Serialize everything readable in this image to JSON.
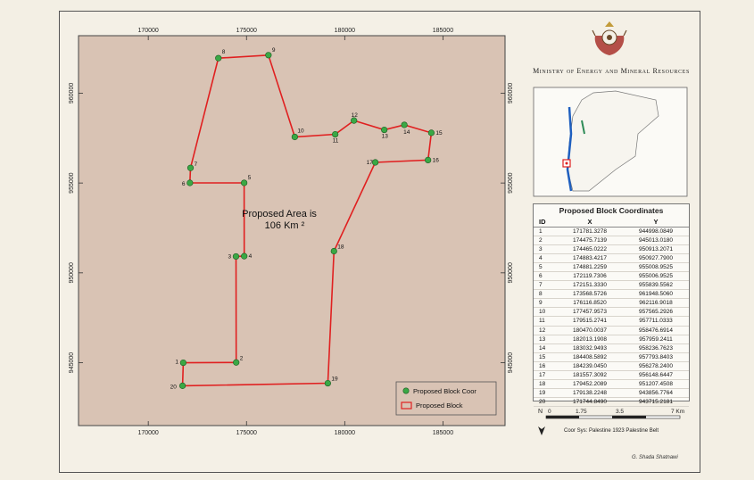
{
  "ministry_title": "Ministry of Energy and Mineral Resources",
  "map": {
    "x_ticks": [
      "170000",
      "175000",
      "180000",
      "185000"
    ],
    "y_ticks": [
      "960000",
      "955000",
      "950000",
      "945000"
    ],
    "area_label_line1": "Proposed Area is",
    "area_label_line2": "106 Km ²",
    "colors": {
      "block_line": "#e02020",
      "point": "#3aa845",
      "map_bg": "#d9c3b4"
    },
    "block_points": [
      {
        "id": "1",
        "x": 171781.3278,
        "y": 944998.0849
      },
      {
        "id": "2",
        "x": 174475.7139,
        "y": 945013.018
      },
      {
        "id": "3",
        "x": 174465.0222,
        "y": 950913.2071
      },
      {
        "id": "4",
        "x": 174883.4217,
        "y": 950927.79
      },
      {
        "id": "5",
        "x": 174881.2259,
        "y": 955008.9525
      },
      {
        "id": "6",
        "x": 172119.7306,
        "y": 955006.9525
      },
      {
        "id": "7",
        "x": 172151.333,
        "y": 955839.5562
      },
      {
        "id": "8",
        "x": 173568.5726,
        "y": 961948.506
      },
      {
        "id": "9",
        "x": 176116.852,
        "y": 962116.9018
      },
      {
        "id": "10",
        "x": 177457.9573,
        "y": 957565.2926
      },
      {
        "id": "11",
        "x": 179515.2741,
        "y": 957711.0333
      },
      {
        "id": "12",
        "x": 180470.0037,
        "y": 958476.6914
      },
      {
        "id": "13",
        "x": 182013.1908,
        "y": 957959.2411
      },
      {
        "id": "14",
        "x": 183032.9493,
        "y": 958236.7623
      },
      {
        "id": "15",
        "x": 184408.5892,
        "y": 957793.8403
      },
      {
        "id": "16",
        "x": 184239.045,
        "y": 956278.24
      },
      {
        "id": "17",
        "x": 181557.3092,
        "y": 956148.6447
      },
      {
        "id": "18",
        "x": 179452.2089,
        "y": 951207.4508
      },
      {
        "id": "19",
        "x": 179138.2248,
        "y": 943856.7764
      },
      {
        "id": "20",
        "x": 171744.849,
        "y": 943715.2181
      }
    ]
  },
  "legend": {
    "points_label": "Proposed Block Coor",
    "block_label": "Proposed Block"
  },
  "table": {
    "title": "Proposed Block Coordinates",
    "headers": [
      "ID",
      "X",
      "Y"
    ],
    "rows": [
      [
        "1",
        "171781.3278",
        "944998.0849"
      ],
      [
        "2",
        "174475.7139",
        "945013.0180"
      ],
      [
        "3",
        "174465.0222",
        "950913.2071"
      ],
      [
        "4",
        "174883.4217",
        "950927.7900"
      ],
      [
        "5",
        "174881.2259",
        "955008.9525"
      ],
      [
        "6",
        "172119.7306",
        "955006.9525"
      ],
      [
        "7",
        "172151.3330",
        "955839.5562"
      ],
      [
        "8",
        "173568.5726",
        "961948.5060"
      ],
      [
        "9",
        "176116.8520",
        "962116.9018"
      ],
      [
        "10",
        "177457.9573",
        "957565.2926"
      ],
      [
        "11",
        "179515.2741",
        "957711.0333"
      ],
      [
        "12",
        "180470.0037",
        "958476.6914"
      ],
      [
        "13",
        "182013.1908",
        "957959.2411"
      ],
      [
        "14",
        "183032.9493",
        "958236.7623"
      ],
      [
        "15",
        "184408.5892",
        "957793.8403"
      ],
      [
        "16",
        "184239.0450",
        "956278.2400"
      ],
      [
        "17",
        "181557.3092",
        "956148.6447"
      ],
      [
        "18",
        "179452.2089",
        "951207.4508"
      ],
      [
        "19",
        "179138.2248",
        "943856.7764"
      ],
      [
        "20",
        "171744.8490",
        "943715.2181"
      ]
    ]
  },
  "scale": {
    "labels": [
      "0",
      "1.75",
      "3.5",
      "7 Km"
    ],
    "north": "N"
  },
  "coord_sys": "Coor Sys: Palestine 1923 Palestine Belt",
  "credit": "G. Shada Shatnawi"
}
